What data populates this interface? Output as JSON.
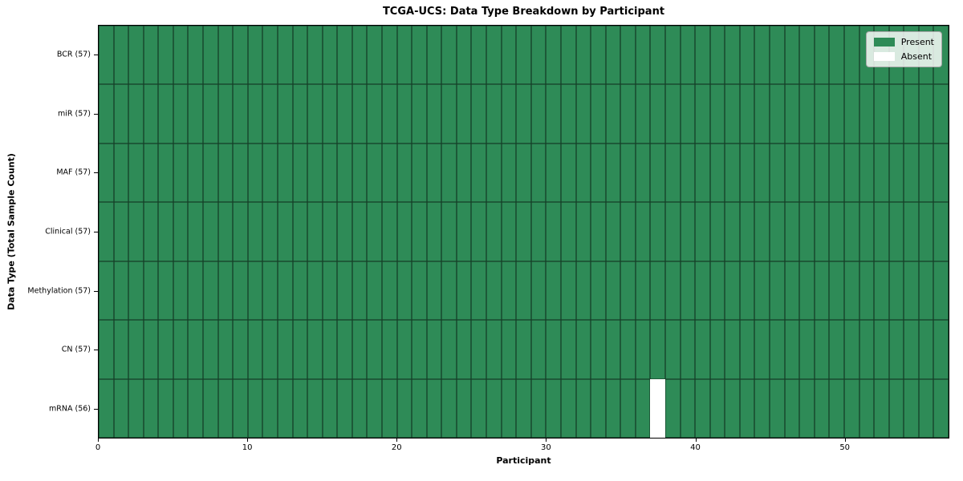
{
  "chart_data": {
    "type": "heatmap",
    "title": "TCGA-UCS: Data Type Breakdown by Participant",
    "xlabel": "Participant",
    "ylabel": "Data Type (Total Sample Count)",
    "n_participants": 57,
    "xlim": [
      0,
      57
    ],
    "x_ticks": [
      0,
      10,
      20,
      30,
      40,
      50
    ],
    "grid": "cell-edges",
    "legend_position": "upper right",
    "legend": {
      "present_label": "Present",
      "absent_label": "Absent"
    },
    "rows": [
      {
        "label": "BCR (57)",
        "data_type": "BCR",
        "present_count": 57,
        "absent_participants": []
      },
      {
        "label": "miR (57)",
        "data_type": "miR",
        "present_count": 57,
        "absent_participants": []
      },
      {
        "label": "MAF (57)",
        "data_type": "MAF",
        "present_count": 57,
        "absent_participants": []
      },
      {
        "label": "Clinical (57)",
        "data_type": "Clinical",
        "present_count": 57,
        "absent_participants": []
      },
      {
        "label": "Methylation (57)",
        "data_type": "Methylation",
        "present_count": 57,
        "absent_participants": []
      },
      {
        "label": "CN (57)",
        "data_type": "CN",
        "present_count": 57,
        "absent_participants": []
      },
      {
        "label": "mRNA (56)",
        "data_type": "mRNA",
        "present_count": 56,
        "absent_participants": [
          37
        ]
      }
    ],
    "colors": {
      "present": "#2E8B57",
      "absent": "#FFFFFF",
      "cell_edge": "#000000"
    }
  }
}
